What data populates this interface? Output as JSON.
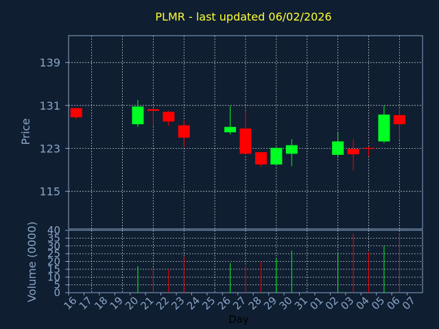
{
  "title": "PLMR - last updated 06/02/2026",
  "colors": {
    "background": "#0f1e31",
    "up": "#00ff22",
    "down": "#ff0000",
    "grid": "#ffffff",
    "axis": "#8ba6c8",
    "title": "#ffff33"
  },
  "chart_data": {
    "type": "candlestick",
    "title": "PLMR - last updated 06/02/2026",
    "ylabel": "Price",
    "volume_label": "Volume (0000)",
    "xlabel": "Day",
    "price_ylim": [
      108,
      144
    ],
    "price_ticks": [
      115,
      123,
      131,
      139
    ],
    "volume_ylim": [
      0,
      40
    ],
    "volume_ticks": [
      0,
      5,
      10,
      15,
      20,
      25,
      30,
      35,
      40
    ],
    "grid": true,
    "date_labels": [
      "16",
      "17",
      "18",
      "19",
      "20",
      "21",
      "22",
      "23",
      "24",
      "25",
      "26",
      "27",
      "28",
      "29",
      "30",
      "31",
      "01",
      "02",
      "03",
      "04",
      "05",
      "06",
      "07"
    ],
    "candles": [
      {
        "label": "16",
        "open": 130.5,
        "high": 130.5,
        "low": 128.5,
        "close": 128.8,
        "volume": 0
      },
      {
        "label": "20",
        "open": 127.5,
        "high": 132.0,
        "low": 127.0,
        "close": 130.8,
        "volume": 17
      },
      {
        "label": "21",
        "open": 130.3,
        "high": 130.3,
        "low": 127.2,
        "close": 130.0,
        "volume": 16
      },
      {
        "label": "22",
        "open": 129.8,
        "high": 130.0,
        "low": 127.2,
        "close": 128.0,
        "volume": 15
      },
      {
        "label": "23",
        "open": 127.3,
        "high": 128.2,
        "low": 123.3,
        "close": 125.0,
        "volume": 23
      },
      {
        "label": "26",
        "open": 126.0,
        "high": 130.9,
        "low": 125.6,
        "close": 127.0,
        "volume": 19
      },
      {
        "label": "27",
        "open": 126.7,
        "high": 130.0,
        "low": 121.8,
        "close": 122.0,
        "volume": 17
      },
      {
        "label": "28",
        "open": 122.3,
        "high": 122.3,
        "low": 119.6,
        "close": 120.0,
        "volume": 20
      },
      {
        "label": "29",
        "open": 120.0,
        "high": 123.2,
        "low": 119.9,
        "close": 123.1,
        "volume": 22
      },
      {
        "label": "30",
        "open": 122.0,
        "high": 124.7,
        "low": 119.7,
        "close": 123.6,
        "volume": 27
      },
      {
        "label": "02",
        "open": 121.8,
        "high": 126.0,
        "low": 121.5,
        "close": 124.3,
        "volume": 25
      },
      {
        "label": "03",
        "open": 122.9,
        "high": 124.7,
        "low": 118.8,
        "close": 121.9,
        "volume": 38
      },
      {
        "label": "04",
        "open": 123.1,
        "high": 123.3,
        "low": 121.5,
        "close": 123.0,
        "volume": 26
      },
      {
        "label": "05",
        "open": 124.3,
        "high": 131.0,
        "low": 124.0,
        "close": 129.3,
        "volume": 30
      },
      {
        "label": "06",
        "open": 129.2,
        "high": 130.3,
        "low": 124.6,
        "close": 127.5,
        "volume": 38
      }
    ]
  }
}
